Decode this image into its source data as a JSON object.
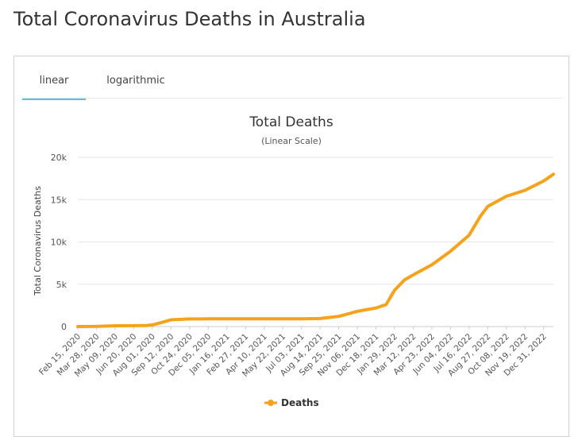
{
  "page": {
    "title": "Total Coronavirus Deaths in Australia"
  },
  "tabs": [
    {
      "label": "linear",
      "active": true
    },
    {
      "label": "logarithmic",
      "active": false
    }
  ],
  "colors": {
    "series": "#f7a21b",
    "tab_underline": "#4fc3e8",
    "grid": "#e6e6e6"
  },
  "chart_data": {
    "type": "line",
    "title": "Total Deaths",
    "subtitle": "(Linear Scale)",
    "ylabel": "Total Coronavirus Deaths",
    "xlabel": "",
    "ylim": [
      0,
      20000
    ],
    "yticks": [
      {
        "value": 0,
        "label": "0"
      },
      {
        "value": 5000,
        "label": "5k"
      },
      {
        "value": 10000,
        "label": "10k"
      },
      {
        "value": 15000,
        "label": "15k"
      },
      {
        "value": 20000,
        "label": "20k"
      }
    ],
    "xlim": [
      "2020-02-15",
      "2023-01-22"
    ],
    "xtick_labels": [
      "Feb 15, 2020",
      "Mar 28, 2020",
      "May 09, 2020",
      "Jun 20, 2020",
      "Aug 01, 2020",
      "Sep 12, 2020",
      "Oct 24, 2020",
      "Dec 05, 2020",
      "Jan 16, 2021",
      "Feb 27, 2021",
      "Apr 10, 2021",
      "May 22, 2021",
      "Jul 03, 2021",
      "Aug 14, 2021",
      "Sep 25, 2021",
      "Nov 06, 2021",
      "Dec 18, 2021",
      "Jan 29, 2022",
      "Mar 12, 2022",
      "Apr 23, 2022",
      "Jun 04, 2022",
      "Jul 16, 2022",
      "Aug 27, 2022",
      "Oct 08, 2022",
      "Nov 19, 2022",
      "Dec 31, 2022"
    ],
    "grid": true,
    "legend": {
      "position": "bottom-center",
      "entries": [
        "Deaths"
      ]
    },
    "series": [
      {
        "name": "Deaths",
        "points": [
          [
            "2020-02-15",
            1
          ],
          [
            "2020-03-28",
            18
          ],
          [
            "2020-05-09",
            97
          ],
          [
            "2020-06-20",
            102
          ],
          [
            "2020-07-20",
            130
          ],
          [
            "2020-08-01",
            200
          ],
          [
            "2020-08-20",
            450
          ],
          [
            "2020-09-12",
            800
          ],
          [
            "2020-10-24",
            905
          ],
          [
            "2020-12-05",
            908
          ],
          [
            "2021-01-16",
            909
          ],
          [
            "2021-02-27",
            909
          ],
          [
            "2021-04-10",
            910
          ],
          [
            "2021-05-22",
            910
          ],
          [
            "2021-07-03",
            912
          ],
          [
            "2021-08-14",
            950
          ],
          [
            "2021-09-25",
            1200
          ],
          [
            "2021-10-20",
            1550
          ],
          [
            "2021-11-06",
            1800
          ],
          [
            "2021-12-18",
            2200
          ],
          [
            "2022-01-10",
            2600
          ],
          [
            "2022-01-29",
            4300
          ],
          [
            "2022-02-20",
            5500
          ],
          [
            "2022-03-12",
            6100
          ],
          [
            "2022-04-23",
            7300
          ],
          [
            "2022-06-04",
            8900
          ],
          [
            "2022-07-16",
            10800
          ],
          [
            "2022-08-10",
            13000
          ],
          [
            "2022-08-27",
            14200
          ],
          [
            "2022-10-08",
            15400
          ],
          [
            "2022-11-19",
            16100
          ],
          [
            "2022-12-31",
            17200
          ],
          [
            "2023-01-22",
            18000
          ]
        ]
      }
    ]
  }
}
